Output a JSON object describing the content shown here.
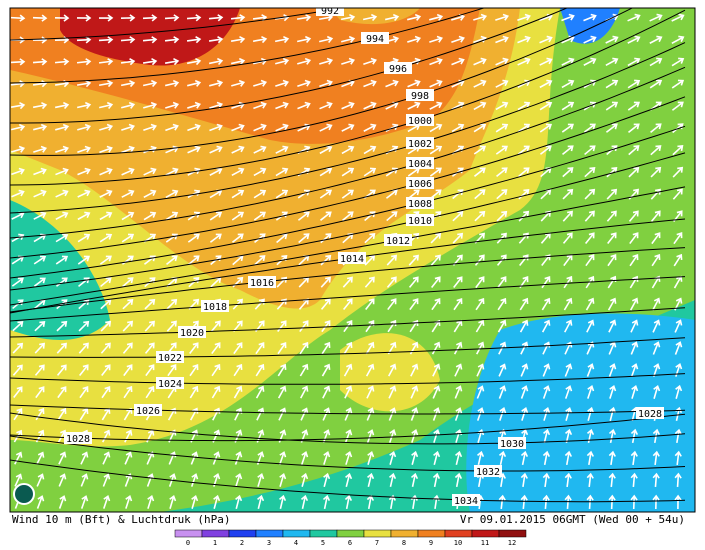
{
  "map": {
    "isobar_labels": [
      "992",
      "994",
      "996",
      "998",
      "1000",
      "1002",
      "1004",
      "1006",
      "1008",
      "1010",
      "1012",
      "1014",
      "1016",
      "1018",
      "1020",
      "1022",
      "1024",
      "1026",
      "1028",
      "1028",
      "1030",
      "1032",
      "1034"
    ],
    "footer_left": "Wind 10 m (Bft) & Luchtdruk (hPa)",
    "footer_right": "Vr 09.01.2015 06GMT (Wed 00 + 54u)",
    "legend": {
      "labels": [
        "0",
        "1",
        "2",
        "3",
        "4",
        "5",
        "6",
        "7",
        "8",
        "9",
        "10",
        "11",
        "12"
      ],
      "colors": [
        "#c890f0",
        "#8040e0",
        "#2040f0",
        "#2080ff",
        "#20b8f0",
        "#20c8a0",
        "#80d040",
        "#e8e040",
        "#f0b030",
        "#f08020",
        "#e04020",
        "#c01818",
        "#901010"
      ]
    }
  }
}
